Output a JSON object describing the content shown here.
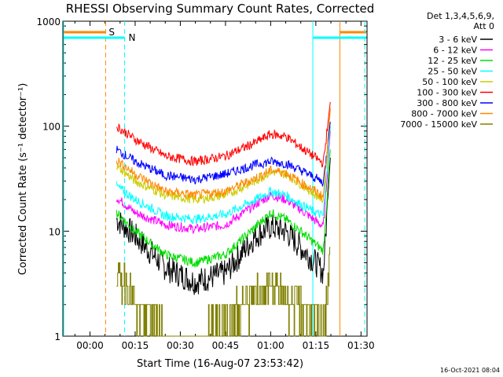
{
  "chart_data": {
    "type": "line",
    "title": "RHESSI Observing Summary Count Rates, Corrected",
    "xlabel": "Start Time (16-Aug-07 23:53:42)",
    "ylabel": "Corrected Count Rate (s⁻¹ detector⁻¹)",
    "yscale": "log",
    "ylim": [
      1,
      1000
    ],
    "xlim_minutes": [
      -9,
      92
    ],
    "x_ticks": [
      {
        "m": 0,
        "label": "00:00"
      },
      {
        "m": 15,
        "label": "00:15"
      },
      {
        "m": 30,
        "label": "00:30"
      },
      {
        "m": 45,
        "label": "00:45"
      },
      {
        "m": 60,
        "label": "01:00"
      },
      {
        "m": 75,
        "label": "01:15"
      },
      {
        "m": 90,
        "label": "01:30"
      }
    ],
    "y_ticks": [
      {
        "v": 1,
        "label": "1"
      },
      {
        "v": 10,
        "label": "10"
      },
      {
        "v": 100,
        "label": "100"
      },
      {
        "v": 1000,
        "label": "1000"
      }
    ],
    "legend_header": [
      "Det 1,3,4,5,6,9,",
      "Att 0"
    ],
    "legend_position": "top-right",
    "series": [
      {
        "name": "3 - 6 keV",
        "color": "#000000",
        "x": [
          8.8,
          15,
          25,
          35,
          45,
          55,
          60,
          65,
          70,
          75,
          77.5,
          79.8
        ],
        "y": [
          13,
          9,
          4.5,
          3.3,
          4,
          9,
          11,
          10,
          7,
          5,
          4,
          50
        ]
      },
      {
        "name": "6 - 12 keV",
        "color": "#ff00ff",
        "x": [
          8.8,
          15,
          25,
          35,
          45,
          55,
          60,
          65,
          70,
          75,
          77.5,
          79.8
        ],
        "y": [
          21,
          15,
          11.5,
          10.5,
          11.5,
          18,
          22,
          20,
          16,
          12.5,
          11,
          90
        ]
      },
      {
        "name": "12 - 25 keV",
        "color": "#00dd00",
        "x": [
          8.8,
          15,
          25,
          35,
          45,
          55,
          60,
          65,
          70,
          75,
          77.5,
          79.8
        ],
        "y": [
          15,
          10,
          6,
          5,
          6,
          11,
          15,
          13,
          10,
          7.5,
          6.5,
          60
        ]
      },
      {
        "name": "25 - 50 keV",
        "color": "#00ffff",
        "x": [
          8.8,
          15,
          25,
          35,
          45,
          55,
          60,
          65,
          70,
          75,
          77.5,
          79.8
        ],
        "y": [
          27,
          20,
          14,
          13,
          14.5,
          20,
          24,
          22,
          18,
          15,
          14,
          100
        ]
      },
      {
        "name": "50 - 100 keV",
        "color": "#cccc00",
        "x": [
          8.8,
          15,
          25,
          35,
          45,
          55,
          60,
          65,
          70,
          75,
          77.5,
          79.8
        ],
        "y": [
          42,
          30,
          22,
          20,
          22,
          30,
          37,
          35,
          28,
          22,
          20,
          140
        ]
      },
      {
        "name": "100 - 300 keV",
        "color": "#ff0000",
        "x": [
          8.8,
          15,
          25,
          35,
          45,
          55,
          60,
          65,
          70,
          75,
          77.5,
          79.8
        ],
        "y": [
          100,
          75,
          52,
          46,
          52,
          70,
          84,
          80,
          63,
          50,
          44,
          170
        ]
      },
      {
        "name": "300 - 800 keV",
        "color": "#0000ff",
        "x": [
          8.8,
          15,
          25,
          35,
          45,
          55,
          60,
          65,
          70,
          75,
          77.5,
          79.8
        ],
        "y": [
          60,
          46,
          34,
          31,
          35,
          43,
          46,
          44,
          38,
          32,
          29,
          110
        ]
      },
      {
        "name": "800 - 7000 keV",
        "color": "#ff8800",
        "x": [
          8.8,
          15,
          25,
          35,
          45,
          55,
          60,
          65,
          70,
          75,
          77.5,
          79.8
        ],
        "y": [
          48,
          35,
          24,
          22,
          24,
          32,
          38,
          36,
          29,
          24,
          21,
          150
        ]
      },
      {
        "name": "7000 - 15000 keV",
        "color": "#808000",
        "x": [
          8.8,
          12,
          15,
          20,
          25,
          30,
          35,
          45,
          50,
          55,
          60,
          65,
          70,
          75,
          77.5,
          79.8
        ],
        "y": [
          3.5,
          3.5,
          2,
          1.5,
          1.2,
          1,
          1,
          1.5,
          2,
          2.5,
          3,
          2.5,
          2,
          1.5,
          1.2,
          5
        ]
      }
    ],
    "annotations": [
      {
        "label": "S",
        "x_start": 5.2,
        "x_end": 83,
        "color": "#ff8800"
      },
      {
        "label": "N",
        "x_start": 11.5,
        "x_end": 74,
        "color": "#00ffff"
      }
    ],
    "timestamp": "16-Oct-2021 08:04"
  }
}
